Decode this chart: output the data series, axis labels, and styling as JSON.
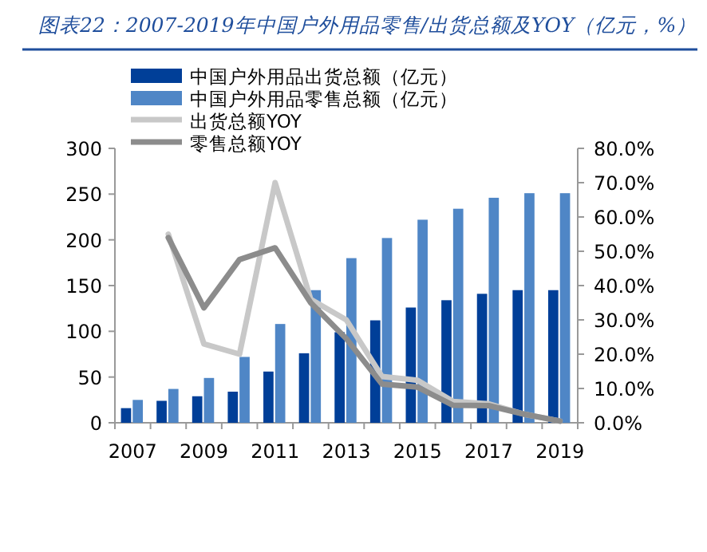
{
  "chart_data": {
    "type": "bar",
    "title": "图表22：2007-2019年中国户外用品零售/出货总额及YOY（亿元，%）",
    "categories": [
      "2007",
      null,
      "2009",
      null,
      "2011",
      null,
      "2013",
      null,
      "2015",
      null,
      "2017",
      null,
      "2019"
    ],
    "series": [
      {
        "name": "中国户外用品出货总额（亿元）",
        "color": "#003f98",
        "values": [
          16,
          24,
          29,
          34,
          56,
          76,
          99,
          112,
          126,
          134,
          141,
          145,
          145
        ]
      },
      {
        "name": "中国户外用品零售总额（亿元）",
        "color": "#4f86c6",
        "values": [
          25,
          37,
          49,
          72,
          108,
          145,
          180,
          202,
          222,
          234,
          246,
          251,
          251
        ]
      },
      {
        "name": "出货总额YOY",
        "type": "line",
        "axis": "y2",
        "color": "#c8c8c8",
        "values": [
          null,
          55,
          23,
          20,
          70,
          36,
          30,
          13.5,
          12.4,
          6.2,
          5.5,
          2.5,
          0.5
        ]
      },
      {
        "name": "零售总额YOY",
        "type": "line",
        "axis": "y2",
        "color": "#8c8c8c",
        "values": [
          null,
          54,
          33.5,
          47.6,
          51,
          35,
          24.5,
          11.3,
          10.4,
          5.1,
          5,
          2.5,
          0.5
        ]
      }
    ],
    "ylim": [
      0,
      300
    ],
    "yticks": [
      0,
      50,
      100,
      150,
      200,
      250,
      300
    ],
    "y2lim": [
      0,
      80
    ],
    "y2ticks": [
      {
        "value": 0,
        "label": "0.0%"
      },
      {
        "value": 10,
        "label": "10.0%"
      },
      {
        "value": 20,
        "label": "20.0%"
      },
      {
        "value": 30,
        "label": "30.0%"
      },
      {
        "value": 40,
        "label": "40.0%"
      },
      {
        "value": 50,
        "label": "50.0%"
      },
      {
        "value": 60,
        "label": "60.0%"
      },
      {
        "value": 70,
        "label": "70.0%"
      },
      {
        "value": 80,
        "label": "80.0%"
      }
    ],
    "legend": "top left",
    "grid": false,
    "marker": "none",
    "line_style": "solid"
  }
}
